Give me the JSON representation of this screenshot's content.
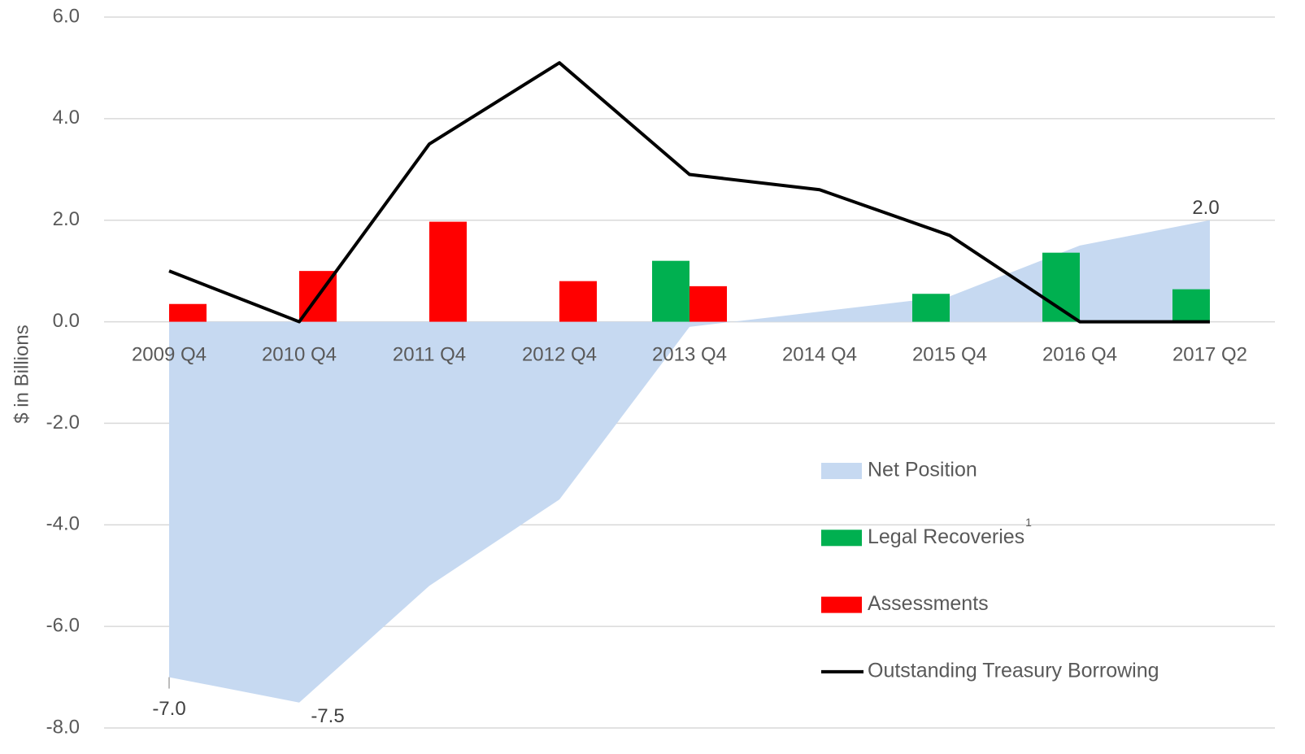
{
  "chart_data": {
    "type": "combo",
    "y_label": "$ in Billions",
    "categories": [
      "2009 Q4",
      "2010 Q4",
      "2011 Q4",
      "2012 Q4",
      "2013 Q4",
      "2014 Q4",
      "2015 Q4",
      "2016 Q4",
      "2017 Q2"
    ],
    "ylim": [
      -8,
      6
    ],
    "yticks": [
      {
        "value": -8,
        "label": "-8.0"
      },
      {
        "value": -6,
        "label": "-6.0"
      },
      {
        "value": -4,
        "label": "-4.0"
      },
      {
        "value": -2,
        "label": "-2.0"
      },
      {
        "value": 0,
        "label": "0.0"
      },
      {
        "value": 2,
        "label": "2.0"
      },
      {
        "value": 4,
        "label": "4.0"
      },
      {
        "value": 6,
        "label": "6.0"
      }
    ],
    "grid": true,
    "legend": "right",
    "legend_footnote": "1",
    "series": [
      {
        "name": "Net Position",
        "type": "area",
        "color": "#c6d9f1",
        "values": [
          -7.0,
          -7.5,
          -5.2,
          -3.5,
          -0.1,
          0.2,
          0.5,
          1.5,
          2.0
        ],
        "value_labels": [
          "-7.0",
          "-7.5",
          null,
          null,
          null,
          null,
          null,
          null,
          "2.0"
        ]
      },
      {
        "name": "Legal Recoveries",
        "type": "bar",
        "color": "#00b050",
        "values": [
          null,
          null,
          null,
          null,
          1.2,
          null,
          0.55,
          1.36,
          0.64
        ]
      },
      {
        "name": "Assessments",
        "type": "bar",
        "color": "#ff0000",
        "values": [
          0.35,
          1.0,
          1.97,
          0.8,
          0.7,
          null,
          null,
          null,
          null
        ]
      },
      {
        "name": "Outstanding Treasury Borrowing",
        "type": "line",
        "color": "#000000",
        "values": [
          1.0,
          0,
          3.5,
          5.1,
          2.9,
          2.6,
          1.7,
          0,
          0
        ]
      }
    ]
  }
}
